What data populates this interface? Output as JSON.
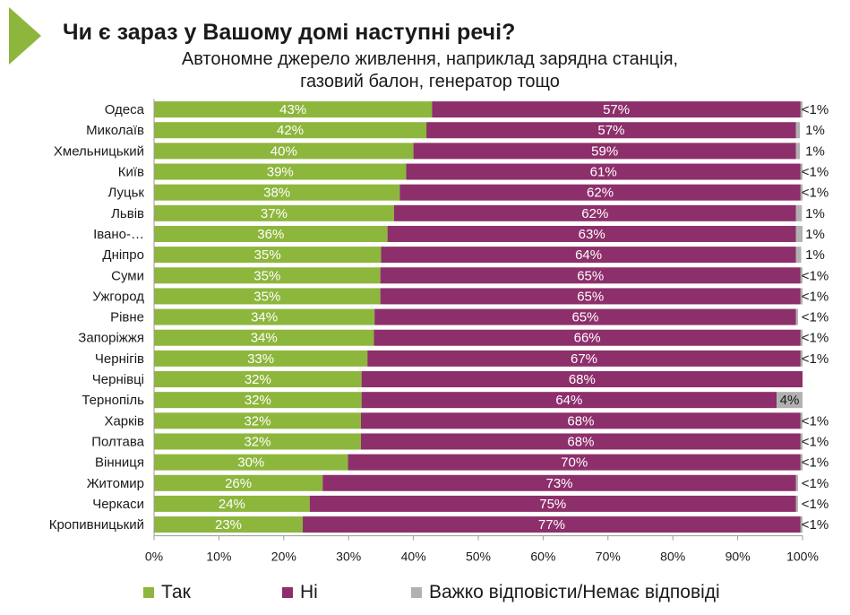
{
  "title": "Чи є зараз у Вашому домі наступні речі?",
  "subtitle_line1": "Автономне джерело живлення, наприклад зарядна станція,",
  "subtitle_line2": "газовий балон, генератор тощо",
  "colors": {
    "yes": "#8db63c",
    "no": "#8d2f6b",
    "hard": "#b1b1b1",
    "accent": "#8db63c"
  },
  "legend": [
    {
      "label": "Так",
      "color": "#8db63c"
    },
    {
      "label": "Ні",
      "color": "#8d2f6b"
    },
    {
      "label": "Важко відповісти/Немає відповіді",
      "color": "#b1b1b1"
    }
  ],
  "chart_data": {
    "type": "bar",
    "orientation": "horizontal",
    "stacked": true,
    "xlim": [
      0,
      100
    ],
    "xticks": [
      "0%",
      "10%",
      "20%",
      "30%",
      "40%",
      "50%",
      "60%",
      "70%",
      "80%",
      "90%",
      "100%"
    ],
    "categories": [
      "Одеса",
      "Миколаїв",
      "Хмельницький",
      "Київ",
      "Луцьк",
      "Львів",
      "Івано-…",
      "Дніпро",
      "Суми",
      "Ужгород",
      "Рівне",
      "Запоріжжя",
      "Чернігів",
      "Чернівці",
      "Тернопіль",
      "Харків",
      "Полтава",
      "Вінниця",
      "Житомир",
      "Черкаси",
      "Кропивницький"
    ],
    "series": [
      {
        "name": "Так",
        "values": [
          43,
          42,
          40,
          39,
          38,
          37,
          36,
          35,
          35,
          35,
          34,
          34,
          33,
          32,
          32,
          32,
          32,
          30,
          26,
          24,
          23
        ]
      },
      {
        "name": "Ні",
        "values": [
          57,
          57,
          59,
          61,
          62,
          62,
          63,
          64,
          65,
          65,
          65,
          66,
          67,
          68,
          64,
          68,
          68,
          70,
          73,
          75,
          77
        ]
      },
      {
        "name": "Важко відповісти/Немає відповіді",
        "values": [
          0.3,
          0.6,
          0.6,
          0.3,
          0.3,
          0.9,
          1,
          0.8,
          0.3,
          0.3,
          0.3,
          0.3,
          0.3,
          0,
          4,
          0.3,
          0.3,
          0.3,
          0.3,
          0.3,
          0.3
        ]
      }
    ],
    "labels": {
      "yes": [
        "43%",
        "42%",
        "40%",
        "39%",
        "38%",
        "37%",
        "36%",
        "35%",
        "35%",
        "35%",
        "34%",
        "34%",
        "33%",
        "32%",
        "32%",
        "32%",
        "32%",
        "30%",
        "26%",
        "24%",
        "23%"
      ],
      "no": [
        "57%",
        "57%",
        "59%",
        "61%",
        "62%",
        "62%",
        "63%",
        "64%",
        "65%",
        "65%",
        "65%",
        "66%",
        "67%",
        "68%",
        "64%",
        "68%",
        "68%",
        "70%",
        "73%",
        "75%",
        "77%"
      ],
      "hard": [
        "<1%",
        "1%",
        "1%",
        "<1%",
        "<1%",
        "1%",
        "1%",
        "1%",
        "<1%",
        "<1%",
        "<1%",
        "<1%",
        "<1%",
        "",
        "4%",
        "<1%",
        "<1%",
        "<1%",
        "<1%",
        "<1%",
        "<1%"
      ]
    },
    "grid": false,
    "legend_position": "bottom"
  }
}
